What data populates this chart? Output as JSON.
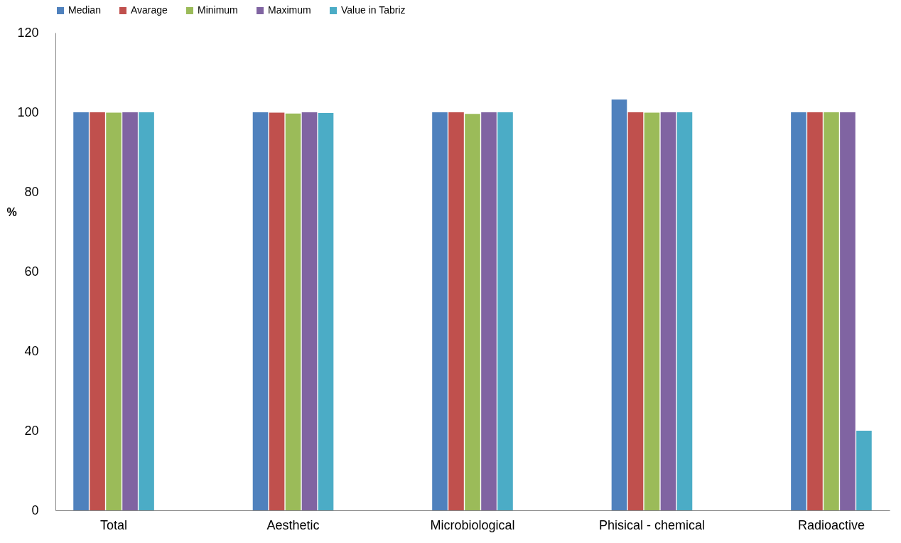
{
  "chart_data": {
    "type": "bar",
    "ylabel": "%",
    "categories": [
      "Total",
      "Aesthetic",
      "Microbiological",
      "Phisical - chemical",
      "Radioactive"
    ],
    "series": [
      {
        "name": "Median",
        "color": "#4f81bd",
        "values": [
          100,
          100,
          100,
          103.2,
          100
        ]
      },
      {
        "name": "Avarage",
        "color": "#c0504d",
        "values": [
          100,
          99.9,
          100,
          100,
          100
        ]
      },
      {
        "name": "Minimum",
        "color": "#9bbb59",
        "values": [
          99.9,
          99.7,
          99.6,
          99.9,
          100
        ]
      },
      {
        "name": "Maximum",
        "color": "#8064a2",
        "values": [
          100,
          100,
          100,
          100,
          100
        ]
      },
      {
        "name": "Value  in Tabriz",
        "color": "#4bacc6",
        "values": [
          100,
          99.8,
          100,
          100,
          20
        ]
      }
    ],
    "ylim": [
      0,
      120
    ],
    "yticks": [
      0,
      20,
      40,
      60,
      80,
      100,
      120
    ],
    "grid": false,
    "legend": "top"
  }
}
